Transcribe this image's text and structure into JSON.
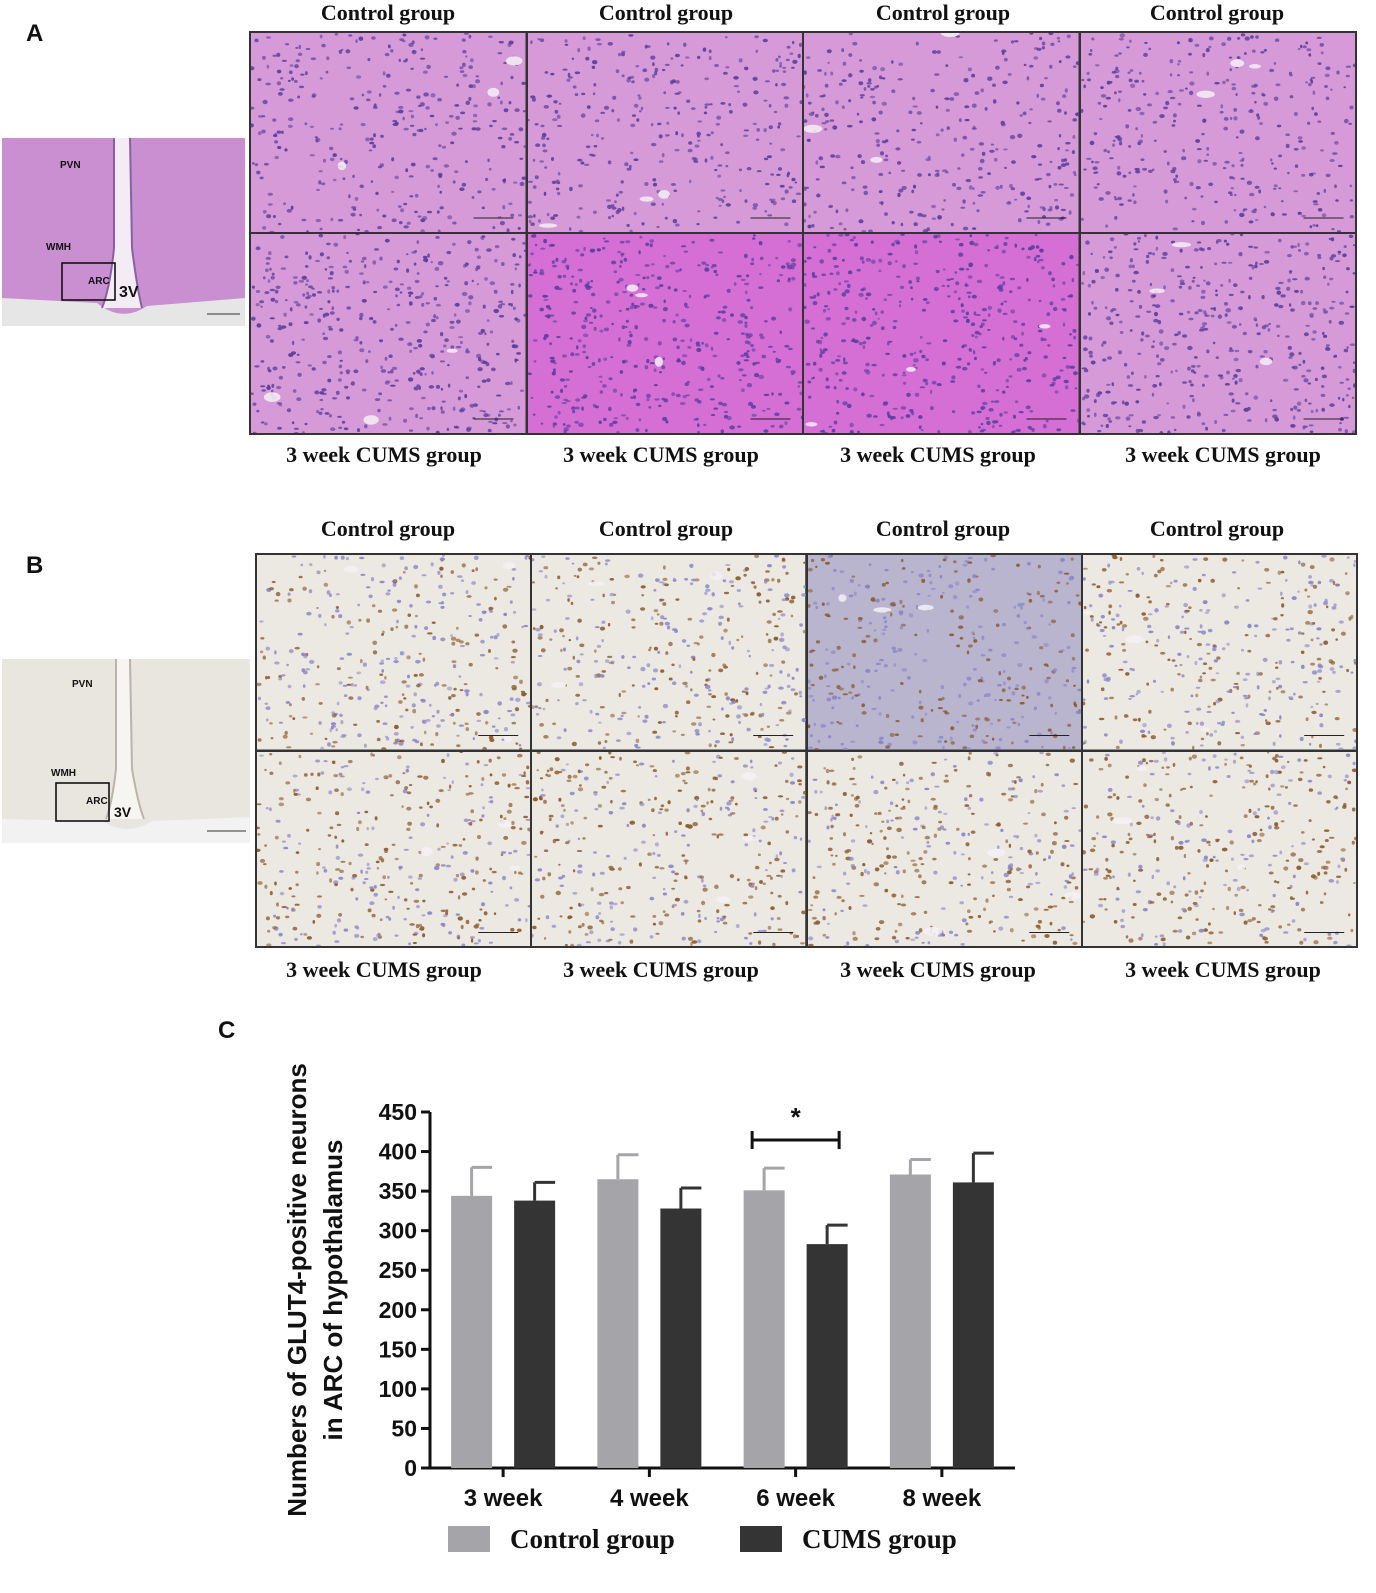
{
  "panels": {
    "a": {
      "letter": "A",
      "top_labels": [
        "Control group",
        "Control group",
        "Control group",
        "Control group"
      ],
      "bottom_labels": [
        "3 week CUMS group",
        "3 week CUMS group",
        "3 week CUMS group",
        "3 week CUMS group"
      ],
      "overview_labels": {
        "pvn": "PVN",
        "wmh": "WMH",
        "arc": "ARC",
        "v3": "3V"
      }
    },
    "b": {
      "letter": "B",
      "top_labels": [
        "Control group",
        "Control group",
        "Control group",
        "Control group"
      ],
      "bottom_labels": [
        "3 week CUMS group",
        "3 week CUMS group",
        "3 week CUMS group",
        "3 week CUMS group"
      ],
      "overview_labels": {
        "pvn": "PVN",
        "wmh": "WMH",
        "arc": "ARC",
        "v3": "3V"
      }
    },
    "c": {
      "letter": "C"
    }
  },
  "colors": {
    "he_background": "#d79ad8",
    "he_nuclei": "#5a3f9c",
    "ihc_background": "#ece8e2",
    "ihc_positive": "#8b5a2b",
    "ihc_negative": "#8a86c9",
    "control_bar": "#a5a5a9",
    "cums_bar": "#343434"
  },
  "chart_data": {
    "type": "bar",
    "categories": [
      "3 week",
      "4 week",
      "6 week",
      "8 week"
    ],
    "series": [
      {
        "name": "Control group",
        "values": [
          344,
          365,
          351,
          371
        ],
        "errors": [
          36,
          31,
          28,
          19
        ]
      },
      {
        "name": "CUMS group",
        "values": [
          338,
          328,
          283,
          361
        ],
        "errors": [
          23,
          26,
          24,
          37
        ]
      }
    ],
    "ylabel": "Numbers of GLUT4-positive neurons in ARC of hypothalamus",
    "ylabel_lines": [
      "Numbers of GLUT4-positive neurons",
      "in ARC of hypothalamus"
    ],
    "xlabel": "",
    "ylim": [
      0,
      450
    ],
    "yticks": [
      0,
      50,
      100,
      150,
      200,
      250,
      300,
      350,
      400,
      450
    ],
    "significance": {
      "category": "6 week",
      "symbol": "*"
    },
    "legend_position": "bottom",
    "grid": false
  }
}
